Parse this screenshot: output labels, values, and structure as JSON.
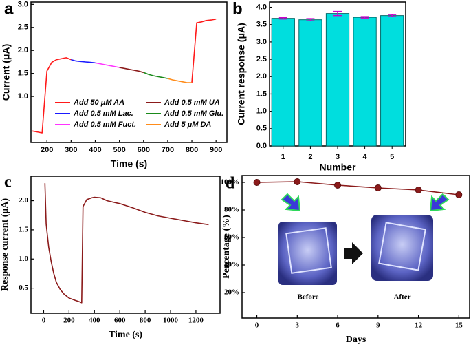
{
  "chart_data": [
    {
      "type": "line",
      "label": "a",
      "xlabel": "Time (s)",
      "ylabel": "Current (μA)",
      "x": [
        140,
        160,
        180,
        200,
        220,
        240,
        260,
        280,
        300,
        320,
        340,
        360,
        380,
        400,
        420,
        440,
        460,
        480,
        500,
        520,
        540,
        560,
        580,
        600,
        620,
        640,
        660,
        680,
        700,
        720,
        740,
        760,
        780,
        800,
        820,
        840,
        860,
        880,
        900
      ],
      "series": [
        {
          "name": "Add 50 μM AA",
          "color": "#ff1a1a",
          "values": [
            0.25,
            0.23,
            0.21,
            1.55,
            1.74,
            1.8,
            1.82,
            1.84,
            1.8,
            null,
            null,
            null,
            null,
            null,
            null,
            null,
            null,
            null,
            null,
            null,
            null,
            null,
            null,
            null,
            null,
            null,
            null,
            null,
            null,
            null,
            null,
            null,
            null,
            1.3,
            2.6,
            2.62,
            2.65,
            2.66,
            2.68
          ]
        },
        {
          "name": "Add 0.5 mM UA",
          "color": "#8b1a1a",
          "values": [
            null,
            null,
            null,
            null,
            null,
            null,
            null,
            null,
            null,
            null,
            null,
            null,
            null,
            null,
            null,
            null,
            null,
            null,
            1.63,
            1.61,
            1.59,
            1.57,
            1.55,
            1.52,
            null,
            null,
            null,
            null,
            null,
            null,
            null,
            null,
            null,
            null,
            null,
            null,
            null,
            null,
            null
          ]
        },
        {
          "name": "Add 0.5 mM Lac.",
          "color": "#1a1aff",
          "values": [
            null,
            null,
            null,
            null,
            null,
            null,
            null,
            null,
            1.8,
            1.77,
            1.76,
            1.75,
            1.74,
            1.73,
            null,
            null,
            null,
            null,
            null,
            null,
            null,
            null,
            null,
            null,
            null,
            null,
            null,
            null,
            null,
            null,
            null,
            null,
            null,
            null,
            null,
            null,
            null,
            null,
            null
          ]
        },
        {
          "name": "Add 0.5 mM Glu.",
          "color": "#1a8a1a",
          "values": [
            null,
            null,
            null,
            null,
            null,
            null,
            null,
            null,
            null,
            null,
            null,
            null,
            null,
            null,
            null,
            null,
            null,
            null,
            null,
            null,
            null,
            null,
            null,
            1.52,
            1.48,
            1.45,
            1.43,
            1.41,
            1.39,
            null,
            null,
            null,
            null,
            null,
            null,
            null,
            null,
            null,
            null
          ]
        },
        {
          "name": "Add 0.5 mM Fuct.",
          "color": "#ff33ff",
          "values": [
            null,
            null,
            null,
            null,
            null,
            null,
            null,
            null,
            null,
            null,
            null,
            null,
            null,
            1.73,
            1.71,
            1.69,
            1.67,
            1.65,
            1.63,
            null,
            null,
            null,
            null,
            null,
            null,
            null,
            null,
            null,
            null,
            null,
            null,
            null,
            null,
            null,
            null,
            null,
            null,
            null,
            null
          ]
        },
        {
          "name": "Add 5 μM DA",
          "color": "#ff8c1a",
          "values": [
            null,
            null,
            null,
            null,
            null,
            null,
            null,
            null,
            null,
            null,
            null,
            null,
            null,
            null,
            null,
            null,
            null,
            null,
            null,
            null,
            null,
            null,
            null,
            null,
            null,
            null,
            null,
            null,
            1.39,
            1.36,
            1.34,
            1.32,
            1.3,
            1.3,
            null,
            null,
            null,
            null,
            null
          ]
        }
      ],
      "xlim": [
        134,
        945
      ],
      "xticks": [
        200,
        300,
        400,
        500,
        600,
        700,
        800,
        900
      ],
      "ylim": [
        0,
        3.05
      ],
      "yticks": [
        {
          "value": 1,
          "label": "1.0"
        },
        1.5,
        {
          "value": 2,
          "label": "2.0"
        },
        2.5,
        {
          "value": 3,
          "label": "3.0"
        }
      ],
      "legend": "lower right"
    },
    {
      "type": "bar",
      "label": "b",
      "xlabel": "Number",
      "ylabel": "Current response (μA)",
      "categories": [
        "1",
        "2",
        "3",
        "4",
        "5"
      ],
      "values": [
        3.68,
        3.64,
        3.82,
        3.71,
        3.76
      ],
      "errors": [
        0.02,
        0.03,
        0.06,
        0.02,
        0.03
      ],
      "color": "#00dede",
      "error_color": "#cc00cc",
      "ylim": [
        0,
        4.15
      ],
      "yticks": [
        {
          "value": 0,
          "label": "0.0"
        },
        0.5,
        {
          "value": 1,
          "label": "1.0"
        },
        1.5,
        {
          "value": 2,
          "label": "2.0"
        },
        2.5,
        {
          "value": 3,
          "label": "3.0"
        },
        3.5,
        {
          "value": 4,
          "label": "4.0"
        }
      ]
    },
    {
      "type": "line",
      "label": "c",
      "xlabel": "Time (s)",
      "ylabel": "Response current (μA)",
      "x": [
        10,
        20,
        40,
        60,
        80,
        100,
        130,
        160,
        200,
        250,
        290,
        300,
        310,
        340,
        380,
        400,
        450,
        500,
        600,
        700,
        800,
        900,
        1000,
        1100,
        1200,
        1300
      ],
      "values": [
        2.3,
        1.6,
        1.2,
        0.95,
        0.75,
        0.6,
        0.48,
        0.4,
        0.33,
        0.29,
        0.26,
        0.25,
        1.9,
        2.02,
        2.05,
        2.06,
        2.05,
        2.0,
        1.95,
        1.88,
        1.8,
        1.74,
        1.7,
        1.66,
        1.62,
        1.59
      ],
      "color": "#8b1a1a",
      "xlim": [
        -100,
        1390
      ],
      "xticks": [
        0,
        200,
        400,
        600,
        800,
        1000,
        1200
      ],
      "ylim": [
        0.07,
        2.42
      ],
      "yticks": [
        0.5,
        {
          "value": 1,
          "label": "1.0"
        },
        1.5,
        {
          "value": 2,
          "label": "2.0"
        }
      ]
    },
    {
      "type": "line",
      "label": "d",
      "xlabel": "Days",
      "ylabel": "Percentage (%)",
      "markers": true,
      "x": [
        0,
        3,
        6,
        9,
        12,
        15
      ],
      "values": [
        100,
        100.5,
        98,
        96,
        94.5,
        91
      ],
      "color": "#8b1a1a",
      "xlim": [
        -1.1,
        15.8
      ],
      "xticks": [
        0,
        3,
        6,
        9,
        12,
        15
      ],
      "ylim": [
        1.5,
        105
      ],
      "yticks": [
        {
          "value": 20,
          "label": "20%"
        },
        {
          "value": 40,
          "label": "40%"
        },
        {
          "value": 60,
          "label": "60%"
        },
        {
          "value": 80,
          "label": "80%"
        },
        {
          "value": 100,
          "label": "100%"
        }
      ],
      "annotations": [
        "Before",
        "After"
      ]
    }
  ]
}
